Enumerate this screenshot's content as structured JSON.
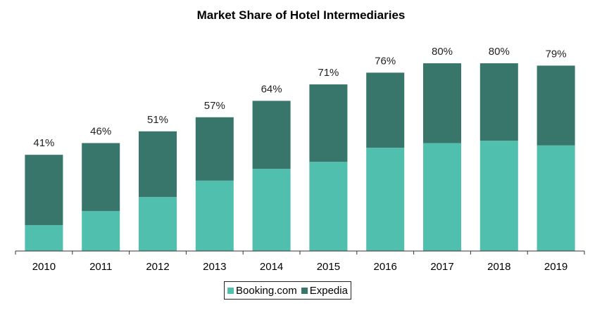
{
  "chart_data": {
    "type": "bar",
    "stacked": true,
    "title": "Market Share of Hotel Intermediaries",
    "categories": [
      "2010",
      "2011",
      "2012",
      "2013",
      "2014",
      "2015",
      "2016",
      "2017",
      "2018",
      "2019"
    ],
    "series": [
      {
        "name": "Booking.com",
        "color": "#50bfae",
        "values": [
          11,
          17,
          23,
          30,
          35,
          38,
          44,
          46,
          47,
          45
        ]
      },
      {
        "name": "Expedia",
        "color": "#38756a",
        "values": [
          30,
          29,
          28,
          27,
          29,
          33,
          32,
          34,
          33,
          34
        ]
      }
    ],
    "totals": [
      41,
      46,
      51,
      57,
      64,
      71,
      76,
      80,
      80,
      79
    ],
    "total_labels": [
      "41%",
      "46%",
      "51%",
      "57%",
      "64%",
      "71%",
      "76%",
      "80%",
      "80%",
      "79%"
    ],
    "ylim": [
      0,
      80
    ],
    "grid": false,
    "legend_position": "bottom"
  }
}
